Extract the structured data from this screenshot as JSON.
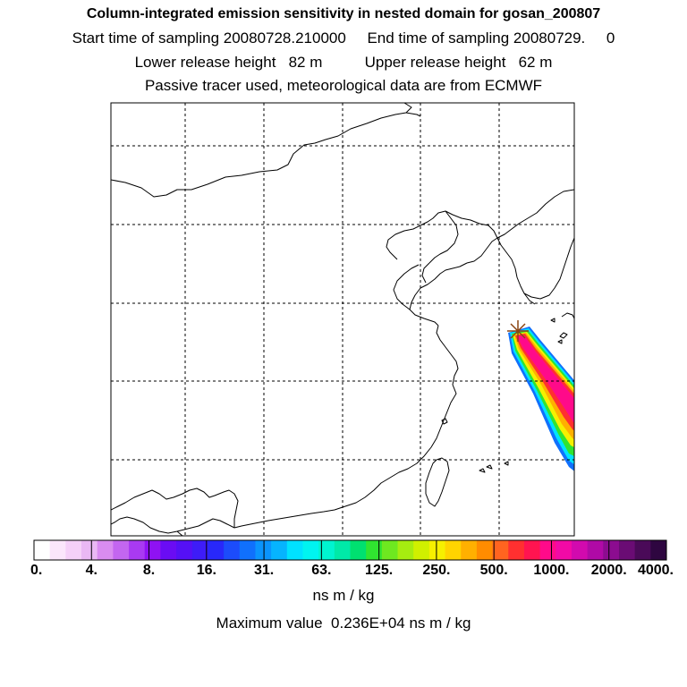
{
  "header": {
    "title": "Column-integrated emission sensitivity in nested domain for gosan_200807",
    "line2": "Start time of sampling 20080728.210000     End time of sampling 20080729.     0",
    "line3": "Lower release height   82 m          Upper release height   62 m",
    "line4": "Passive tracer used, meteorological data are from ECMWF"
  },
  "colorbar": {
    "labels": [
      "0.",
      "4.",
      "8.",
      "16.",
      "31.",
      "63.",
      "125.",
      "250.",
      "500.",
      "1000.",
      "2000.",
      "4000."
    ],
    "colors": [
      "#ffffff",
      "#fbe6fb",
      "#f5d0f8",
      "#eab8f4",
      "#d98cf0",
      "#c366f0",
      "#a93af2",
      "#8f12f3",
      "#6a0cf4",
      "#5510f6",
      "#3e1cf8",
      "#2828fa",
      "#1c4cfb",
      "#1070fc",
      "#0a94fd",
      "#06b4fe",
      "#00e2ff",
      "#00f4f0",
      "#00f4d0",
      "#00eaa8",
      "#00e070",
      "#30e430",
      "#6ee820",
      "#a6ec10",
      "#d0f000",
      "#f6f000",
      "#ffd400",
      "#ffb000",
      "#ff8c00",
      "#ff6420",
      "#ff3030",
      "#ff1450",
      "#ff0a8a",
      "#f20aa6",
      "#d20aae",
      "#b00aa6",
      "#8c0c90",
      "#6a0c74",
      "#4a0a58",
      "#2e0640"
    ],
    "units": "ns m / kg",
    "max_label": "Maximum value  0.236E+04 ns m / kg"
  },
  "plume_colors": {
    "inner": "#ff0a8a",
    "mid": "#ff3030",
    "band_orange": "#ffb000",
    "band_yellow": "#f6f000",
    "band_green": "#30e430",
    "band_cyan": "#00e2ff",
    "band_blue": "#1070fc",
    "marker": "#8b4513"
  }
}
